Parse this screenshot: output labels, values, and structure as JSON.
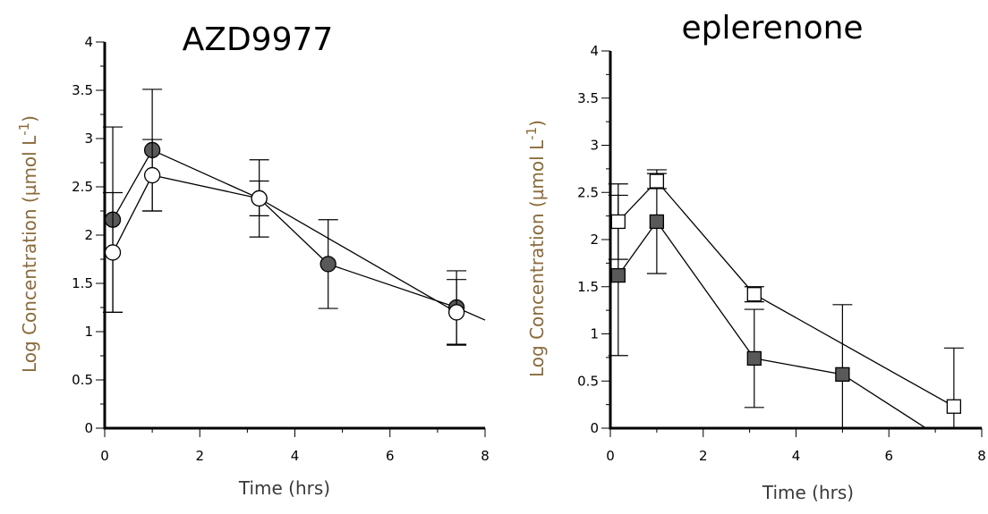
{
  "chart_data": [
    {
      "type": "line",
      "title": "AZD9977",
      "xlabel": "Time (hrs)",
      "ylabel": "Log Concentration (µmol L",
      "ylabel_sup": "-1",
      "ylabel_close": ")",
      "xlim": [
        0,
        8
      ],
      "ylim": [
        0,
        4
      ],
      "xticks": [
        "0",
        "2",
        "4",
        "6",
        "8"
      ],
      "yticks": [
        "0",
        "0.5",
        "1",
        "1.5",
        "2",
        "2.5",
        "3",
        "3.5",
        "4"
      ],
      "series": [
        {
          "marker": "circle-filled",
          "fill": "#595959",
          "x": [
            0.17,
            1.0,
            3.25,
            4.7,
            7.4,
            8.0
          ],
          "y": [
            2.16,
            2.88,
            2.38,
            1.7,
            1.25,
            1.12
          ],
          "err": [
            0.96,
            0.63,
            0.4,
            0.46,
            0.38,
            null
          ]
        },
        {
          "marker": "circle-open",
          "fill": "#ffffff",
          "x": [
            0.17,
            1.0,
            3.25,
            7.4
          ],
          "y": [
            1.82,
            2.62,
            2.38,
            1.2
          ],
          "err": [
            0.62,
            0.37,
            0.18,
            0.34
          ]
        }
      ]
    },
    {
      "type": "line",
      "title": "eplerenone",
      "xlabel": "Time (hrs)",
      "ylabel": "Log Concentration (µmol L",
      "ylabel_sup": "-1",
      "ylabel_close": ")",
      "xlim": [
        0,
        8
      ],
      "ylim": [
        0,
        4
      ],
      "xticks": [
        "0",
        "2",
        "4",
        "6",
        "8"
      ],
      "yticks": [
        "0",
        "0.5",
        "1",
        "1.5",
        "2",
        "2.5",
        "3",
        "3.5",
        "4"
      ],
      "series": [
        {
          "marker": "square-filled",
          "fill": "#595959",
          "x": [
            0.17,
            1.0,
            3.1,
            5.0,
            6.8
          ],
          "y": [
            1.62,
            2.19,
            0.74,
            0.57,
            0.0
          ],
          "err": [
            0.85,
            0.55,
            0.52,
            0.74,
            null
          ]
        },
        {
          "marker": "square-open",
          "fill": "#ffffff",
          "x": [
            0.17,
            1.0,
            3.1,
            7.4
          ],
          "y": [
            2.19,
            2.62,
            1.42,
            0.23
          ],
          "err": [
            0.4,
            0.08,
            0.08,
            0.62
          ]
        }
      ]
    }
  ]
}
